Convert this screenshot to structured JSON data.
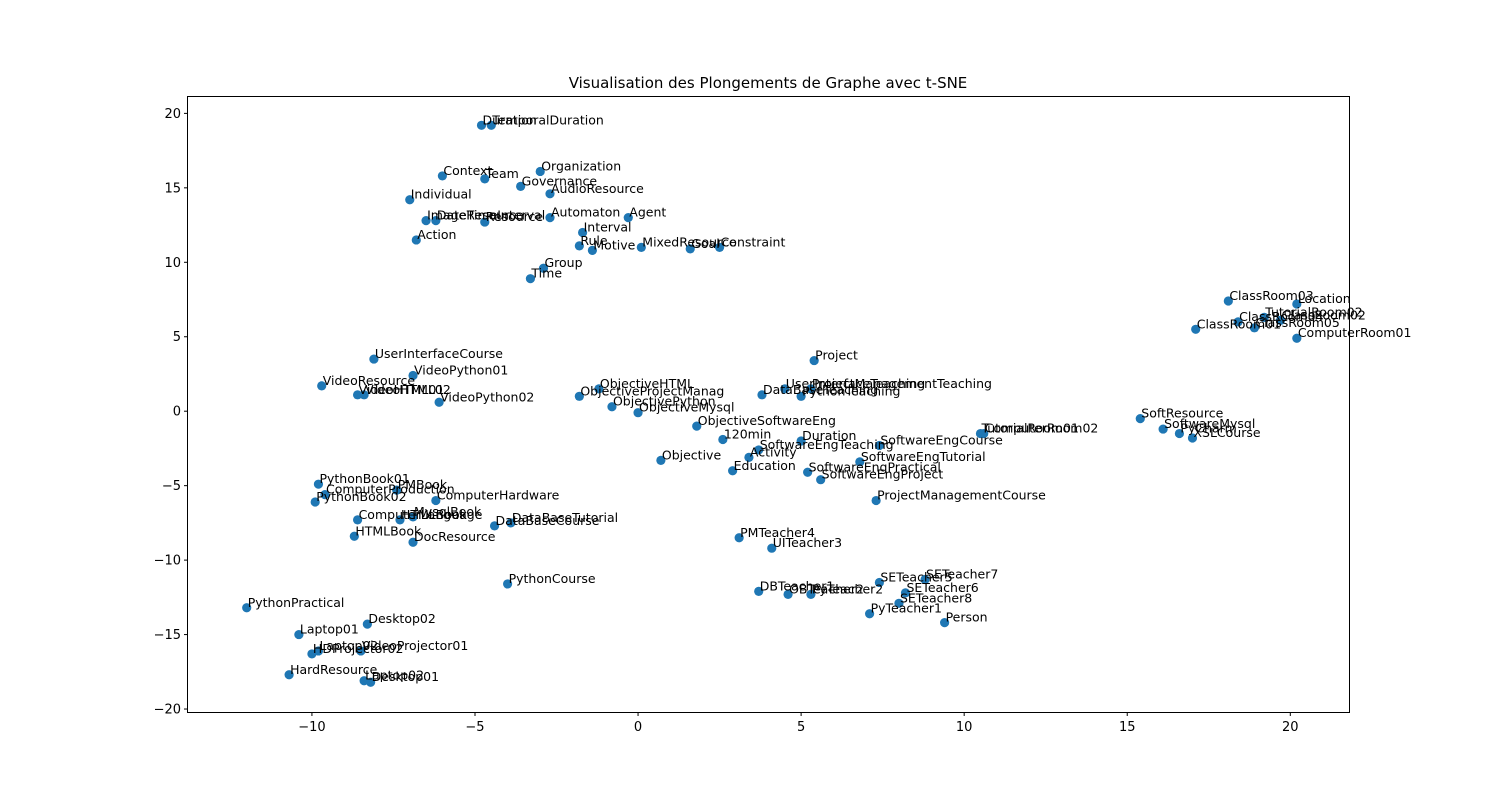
{
  "chart_data": {
    "type": "scatter",
    "title": "Visualisation des Plongements de Graphe avec t-SNE",
    "xlabel": "",
    "ylabel": "",
    "xlim": [
      -13.8,
      21.8
    ],
    "ylim": [
      -20.2,
      21.1
    ],
    "xticks": [
      -10,
      -5,
      0,
      5,
      10,
      15,
      20
    ],
    "yticks": [
      -20,
      -15,
      -10,
      -5,
      0,
      5,
      10,
      15,
      20
    ],
    "grid": false,
    "marker_color": "#1f77b4",
    "points": [
      {
        "label": "TemporalDuration",
        "x": -4.5,
        "y": 19.2
      },
      {
        "label": "Duration",
        "x": -4.8,
        "y": 19.2
      },
      {
        "label": "Context",
        "x": -6.0,
        "y": 15.8
      },
      {
        "label": "Team",
        "x": -4.7,
        "y": 15.6
      },
      {
        "label": "Organization",
        "x": -3.0,
        "y": 16.1
      },
      {
        "label": "Governance",
        "x": -3.6,
        "y": 15.1
      },
      {
        "label": "AudioResource",
        "x": -2.7,
        "y": 14.6
      },
      {
        "label": "Individual",
        "x": -7.0,
        "y": 14.2
      },
      {
        "label": "DateTimeInterval",
        "x": -6.2,
        "y": 12.8
      },
      {
        "label": "ImageResource",
        "x": -6.5,
        "y": 12.8
      },
      {
        "label": "Resource",
        "x": -4.7,
        "y": 12.7
      },
      {
        "label": "Automaton",
        "x": -2.7,
        "y": 13.0
      },
      {
        "label": "Agent",
        "x": -0.3,
        "y": 13.0
      },
      {
        "label": "Interval",
        "x": -1.7,
        "y": 12.0
      },
      {
        "label": "Action",
        "x": -6.8,
        "y": 11.5
      },
      {
        "label": "Rule",
        "x": -1.8,
        "y": 11.1
      },
      {
        "label": "Motive",
        "x": -1.4,
        "y": 10.8
      },
      {
        "label": "MixedResource",
        "x": 0.1,
        "y": 11.0
      },
      {
        "label": "Goal",
        "x": 1.6,
        "y": 10.9
      },
      {
        "label": "Constraint",
        "x": 2.5,
        "y": 11.0
      },
      {
        "label": "Group",
        "x": -2.9,
        "y": 9.6
      },
      {
        "label": "Time",
        "x": -3.3,
        "y": 8.9
      },
      {
        "label": "ClassRoom03",
        "x": 18.1,
        "y": 7.4
      },
      {
        "label": "Location",
        "x": 20.2,
        "y": 7.2
      },
      {
        "label": "TutorialRoom02",
        "x": 19.2,
        "y": 6.3
      },
      {
        "label": "ClassRoom02",
        "x": 19.7,
        "y": 6.1
      },
      {
        "label": "ClassRoom04",
        "x": 18.4,
        "y": 6.0
      },
      {
        "label": "ClassRoom05",
        "x": 18.9,
        "y": 5.6
      },
      {
        "label": "ClassRoom01",
        "x": 17.1,
        "y": 5.5
      },
      {
        "label": "ComputerRoom01",
        "x": 20.2,
        "y": 4.9
      },
      {
        "label": "UserInterfaceCourse",
        "x": -8.1,
        "y": 3.5
      },
      {
        "label": "Project",
        "x": 5.4,
        "y": 3.4
      },
      {
        "label": "VideoPython01",
        "x": -6.9,
        "y": 2.4
      },
      {
        "label": "VideoResource",
        "x": -9.7,
        "y": 1.7
      },
      {
        "label": "VideoHTML02",
        "x": -8.4,
        "y": 1.1
      },
      {
        "label": "VideoHTML01",
        "x": -8.6,
        "y": 1.1
      },
      {
        "label": "ObjectiveHTML",
        "x": -1.2,
        "y": 1.5
      },
      {
        "label": "UserInterfaceTeaching",
        "x": 4.5,
        "y": 1.5
      },
      {
        "label": "ProjectManagementTeaching",
        "x": 5.3,
        "y": 1.5
      },
      {
        "label": "DataBaseTeaching",
        "x": 3.8,
        "y": 1.1
      },
      {
        "label": "PythonTeaching",
        "x": 5.0,
        "y": 1.0
      },
      {
        "label": "ObjectiveProjectManag",
        "x": -1.8,
        "y": 1.0
      },
      {
        "label": "VideoPython02",
        "x": -6.1,
        "y": 0.6
      },
      {
        "label": "ObjectivePython",
        "x": -0.8,
        "y": 0.3
      },
      {
        "label": "ObjectiveMysql",
        "x": 0.0,
        "y": -0.1
      },
      {
        "label": "SoftResource",
        "x": 15.4,
        "y": -0.5
      },
      {
        "label": "SoftwareMysql",
        "x": 16.1,
        "y": -1.2
      },
      {
        "label": "PyCharm",
        "x": 16.6,
        "y": -1.5
      },
      {
        "label": "XSLCourse",
        "x": 17.0,
        "y": -1.8
      },
      {
        "label": "ObjectiveSoftwareEng",
        "x": 1.8,
        "y": -1.0
      },
      {
        "label": "TutorialRoom01",
        "x": 10.5,
        "y": -1.5
      },
      {
        "label": "ComputerRoom02",
        "x": 10.6,
        "y": -1.5
      },
      {
        "label": "120min",
        "x": 2.6,
        "y": -1.9
      },
      {
        "label": "Duration",
        "x": 5.0,
        "y": -2.0
      },
      {
        "label": "SoftwareEngTeaching",
        "x": 3.7,
        "y": -2.6
      },
      {
        "label": "SoftwareEngCourse",
        "x": 7.4,
        "y": -2.3
      },
      {
        "label": "Activity",
        "x": 3.4,
        "y": -3.1
      },
      {
        "label": "Objective",
        "x": 0.7,
        "y": -3.3
      },
      {
        "label": "SoftwareEngTutorial",
        "x": 6.8,
        "y": -3.4
      },
      {
        "label": "Education",
        "x": 2.9,
        "y": -4.0
      },
      {
        "label": "SoftwareEngPractical",
        "x": 5.2,
        "y": -4.1
      },
      {
        "label": "SoftwareEngProject",
        "x": 5.6,
        "y": -4.6
      },
      {
        "label": "PythonBook01",
        "x": -9.8,
        "y": -4.9
      },
      {
        "label": "PMBook",
        "x": -7.4,
        "y": -5.3
      },
      {
        "label": "ComputerProduction",
        "x": -9.6,
        "y": -5.6
      },
      {
        "label": "ComputerHardware",
        "x": -6.2,
        "y": -6.0
      },
      {
        "label": "PythonBook02",
        "x": -9.9,
        "y": -6.1
      },
      {
        "label": "ProjectManagementCourse",
        "x": 7.3,
        "y": -6.0
      },
      {
        "label": "MysqlBook",
        "x": -6.9,
        "y": -7.1
      },
      {
        "label": "ComputerLanguage",
        "x": -8.6,
        "y": -7.3
      },
      {
        "label": "HTMLBook",
        "x": -7.3,
        "y": -7.3
      },
      {
        "label": "DataBaseTutorial",
        "x": -3.9,
        "y": -7.5
      },
      {
        "label": "DataBaseCourse",
        "x": -4.4,
        "y": -7.7
      },
      {
        "label": "HTMLBook",
        "x": -8.7,
        "y": -8.4
      },
      {
        "label": "DocResource",
        "x": -6.9,
        "y": -8.8
      },
      {
        "label": "PMTeacher4",
        "x": 3.1,
        "y": -8.5
      },
      {
        "label": "UITeacher3",
        "x": 4.1,
        "y": -9.2
      },
      {
        "label": "PythonCourse",
        "x": -4.0,
        "y": -11.6
      },
      {
        "label": "SETeacher7",
        "x": 8.8,
        "y": -11.3
      },
      {
        "label": "SETeacher5",
        "x": 7.4,
        "y": -11.5
      },
      {
        "label": "SETeacher6",
        "x": 8.2,
        "y": -12.2
      },
      {
        "label": "DBTeacher1",
        "x": 3.7,
        "y": -12.1
      },
      {
        "label": "OBTeacher2",
        "x": 4.6,
        "y": -12.3
      },
      {
        "label": "PyTeacher2",
        "x": 5.3,
        "y": -12.3
      },
      {
        "label": "SETeacher8",
        "x": 8.0,
        "y": -12.9
      },
      {
        "label": "PyTeacher1",
        "x": 7.1,
        "y": -13.6
      },
      {
        "label": "Person",
        "x": 9.4,
        "y": -14.2
      },
      {
        "label": "PythonPractical",
        "x": -12.0,
        "y": -13.2
      },
      {
        "label": "Desktop02",
        "x": -8.3,
        "y": -14.3
      },
      {
        "label": "Laptop01",
        "x": -10.4,
        "y": -15.0
      },
      {
        "label": "Laptop02",
        "x": -9.8,
        "y": -16.1
      },
      {
        "label": "VideoProjector01",
        "x": -8.5,
        "y": -16.1
      },
      {
        "label": "HDProjector02",
        "x": -10.0,
        "y": -16.3
      },
      {
        "label": "HardResource",
        "x": -10.7,
        "y": -17.7
      },
      {
        "label": "Laptop02",
        "x": -8.4,
        "y": -18.1
      },
      {
        "label": "Desktop01",
        "x": -8.2,
        "y": -18.2
      }
    ]
  }
}
